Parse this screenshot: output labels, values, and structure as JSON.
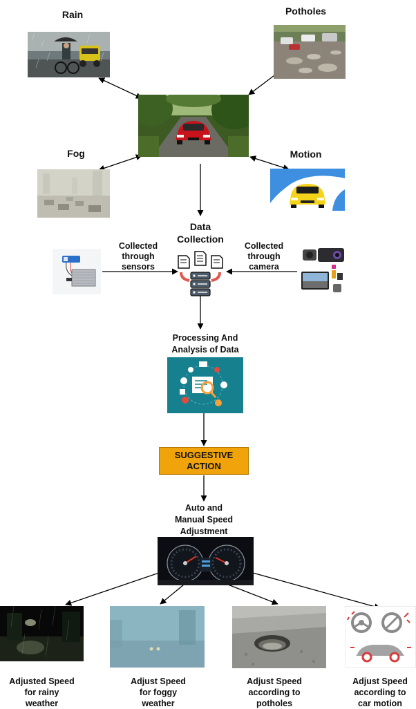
{
  "top_labels": {
    "rain": "Rain",
    "potholes": "Potholes",
    "fog": "Fog",
    "motion": "Motion"
  },
  "data_collection": {
    "title_line1": "Data",
    "title_line2": "Collection",
    "sensors_line1": "Collected",
    "sensors_line2": "through",
    "sensors_line3": "sensors",
    "camera_line1": "Collected",
    "camera_line2": "through",
    "camera_line3": "camera"
  },
  "processing": {
    "line1": "Processing And",
    "line2": "Analysis of Data"
  },
  "action": {
    "line1": "SUGGESTIVE",
    "line2": "ACTION"
  },
  "speed_adjustment": {
    "line1": "Auto and",
    "line2": "Manual Speed",
    "line3": "Adjustment"
  },
  "outputs": [
    {
      "line1": "Adjusted Speed",
      "line2": "for rainy",
      "line3": "weather"
    },
    {
      "line1": "Adjust Speed",
      "line2": "for foggy",
      "line3": "weather"
    },
    {
      "line1": "Adjust Speed",
      "line2": "according to",
      "line3": "potholes"
    },
    {
      "line1": "Adjust Speed",
      "line2": "according to",
      "line3": "car motion"
    }
  ],
  "colors": {
    "action_box": "#f0a30a",
    "processing_bg": "#16808f"
  }
}
